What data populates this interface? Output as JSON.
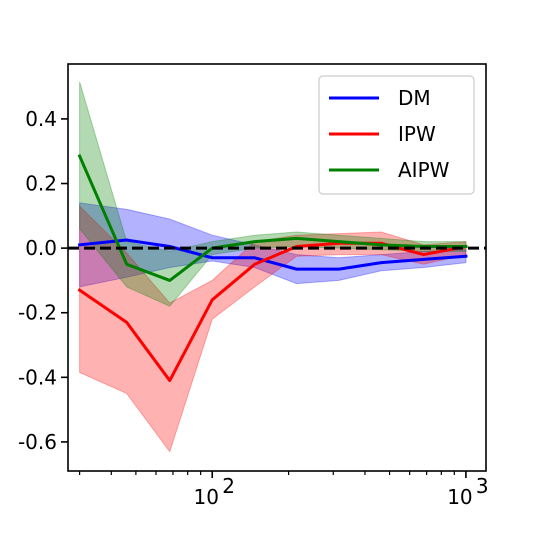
{
  "chart_data": {
    "type": "line",
    "title": "",
    "xlabel": "",
    "ylabel": "",
    "x_scale": "log",
    "xlim": [
      27,
      1200
    ],
    "ylim": [
      -0.69,
      0.57
    ],
    "x_ticks": [
      {
        "value": 100,
        "base": "10",
        "exp": "2"
      },
      {
        "value": 1000,
        "base": "10",
        "exp": "3"
      }
    ],
    "y_ticks": [
      {
        "value": 0.4,
        "label": "0.4"
      },
      {
        "value": 0.2,
        "label": "0.2"
      },
      {
        "value": 0.0,
        "label": "0.0"
      },
      {
        "value": -0.2,
        "label": "-0.2"
      },
      {
        "value": -0.4,
        "label": "-0.4"
      },
      {
        "value": -0.6,
        "label": "-0.6"
      }
    ],
    "reference_line": {
      "y": 0.0,
      "style": "dashed",
      "color": "#000000"
    },
    "legend": "top-right",
    "x": [
      30,
      46,
      68,
      100,
      147,
      215,
      316,
      464,
      681,
      1000
    ],
    "series": [
      {
        "name": "DM",
        "color": "#0000ff",
        "values": [
          0.01,
          0.025,
          0.005,
          -0.03,
          -0.03,
          -0.065,
          -0.065,
          -0.045,
          -0.035,
          -0.025
        ],
        "lower": [
          -0.12,
          -0.09,
          -0.06,
          -0.04,
          -0.06,
          -0.11,
          -0.1,
          -0.07,
          -0.06,
          -0.045
        ],
        "upper": [
          0.14,
          0.12,
          0.09,
          0.04,
          0.01,
          -0.02,
          -0.03,
          -0.02,
          -0.01,
          -0.005
        ]
      },
      {
        "name": "IPW",
        "color": "#ff0000",
        "values": [
          -0.13,
          -0.23,
          -0.41,
          -0.16,
          -0.05,
          0.005,
          0.015,
          0.015,
          -0.02,
          0.005
        ],
        "lower": [
          -0.385,
          -0.45,
          -0.63,
          -0.22,
          -0.12,
          -0.025,
          -0.02,
          -0.02,
          -0.05,
          -0.02
        ],
        "upper": [
          0.13,
          -0.015,
          -0.17,
          -0.1,
          0.02,
          0.04,
          0.045,
          0.05,
          0.01,
          0.02
        ]
      },
      {
        "name": "AIPW",
        "color": "#008000",
        "values": [
          0.285,
          -0.05,
          -0.1,
          0.0,
          0.02,
          0.03,
          0.02,
          0.01,
          0.005,
          0.005
        ],
        "lower": [
          0.06,
          -0.12,
          -0.18,
          -0.02,
          0.0,
          0.005,
          0.0,
          -0.005,
          -0.01,
          -0.01
        ],
        "upper": [
          0.515,
          0.02,
          -0.01,
          0.02,
          0.04,
          0.05,
          0.04,
          0.03,
          0.02,
          0.02
        ]
      }
    ]
  }
}
